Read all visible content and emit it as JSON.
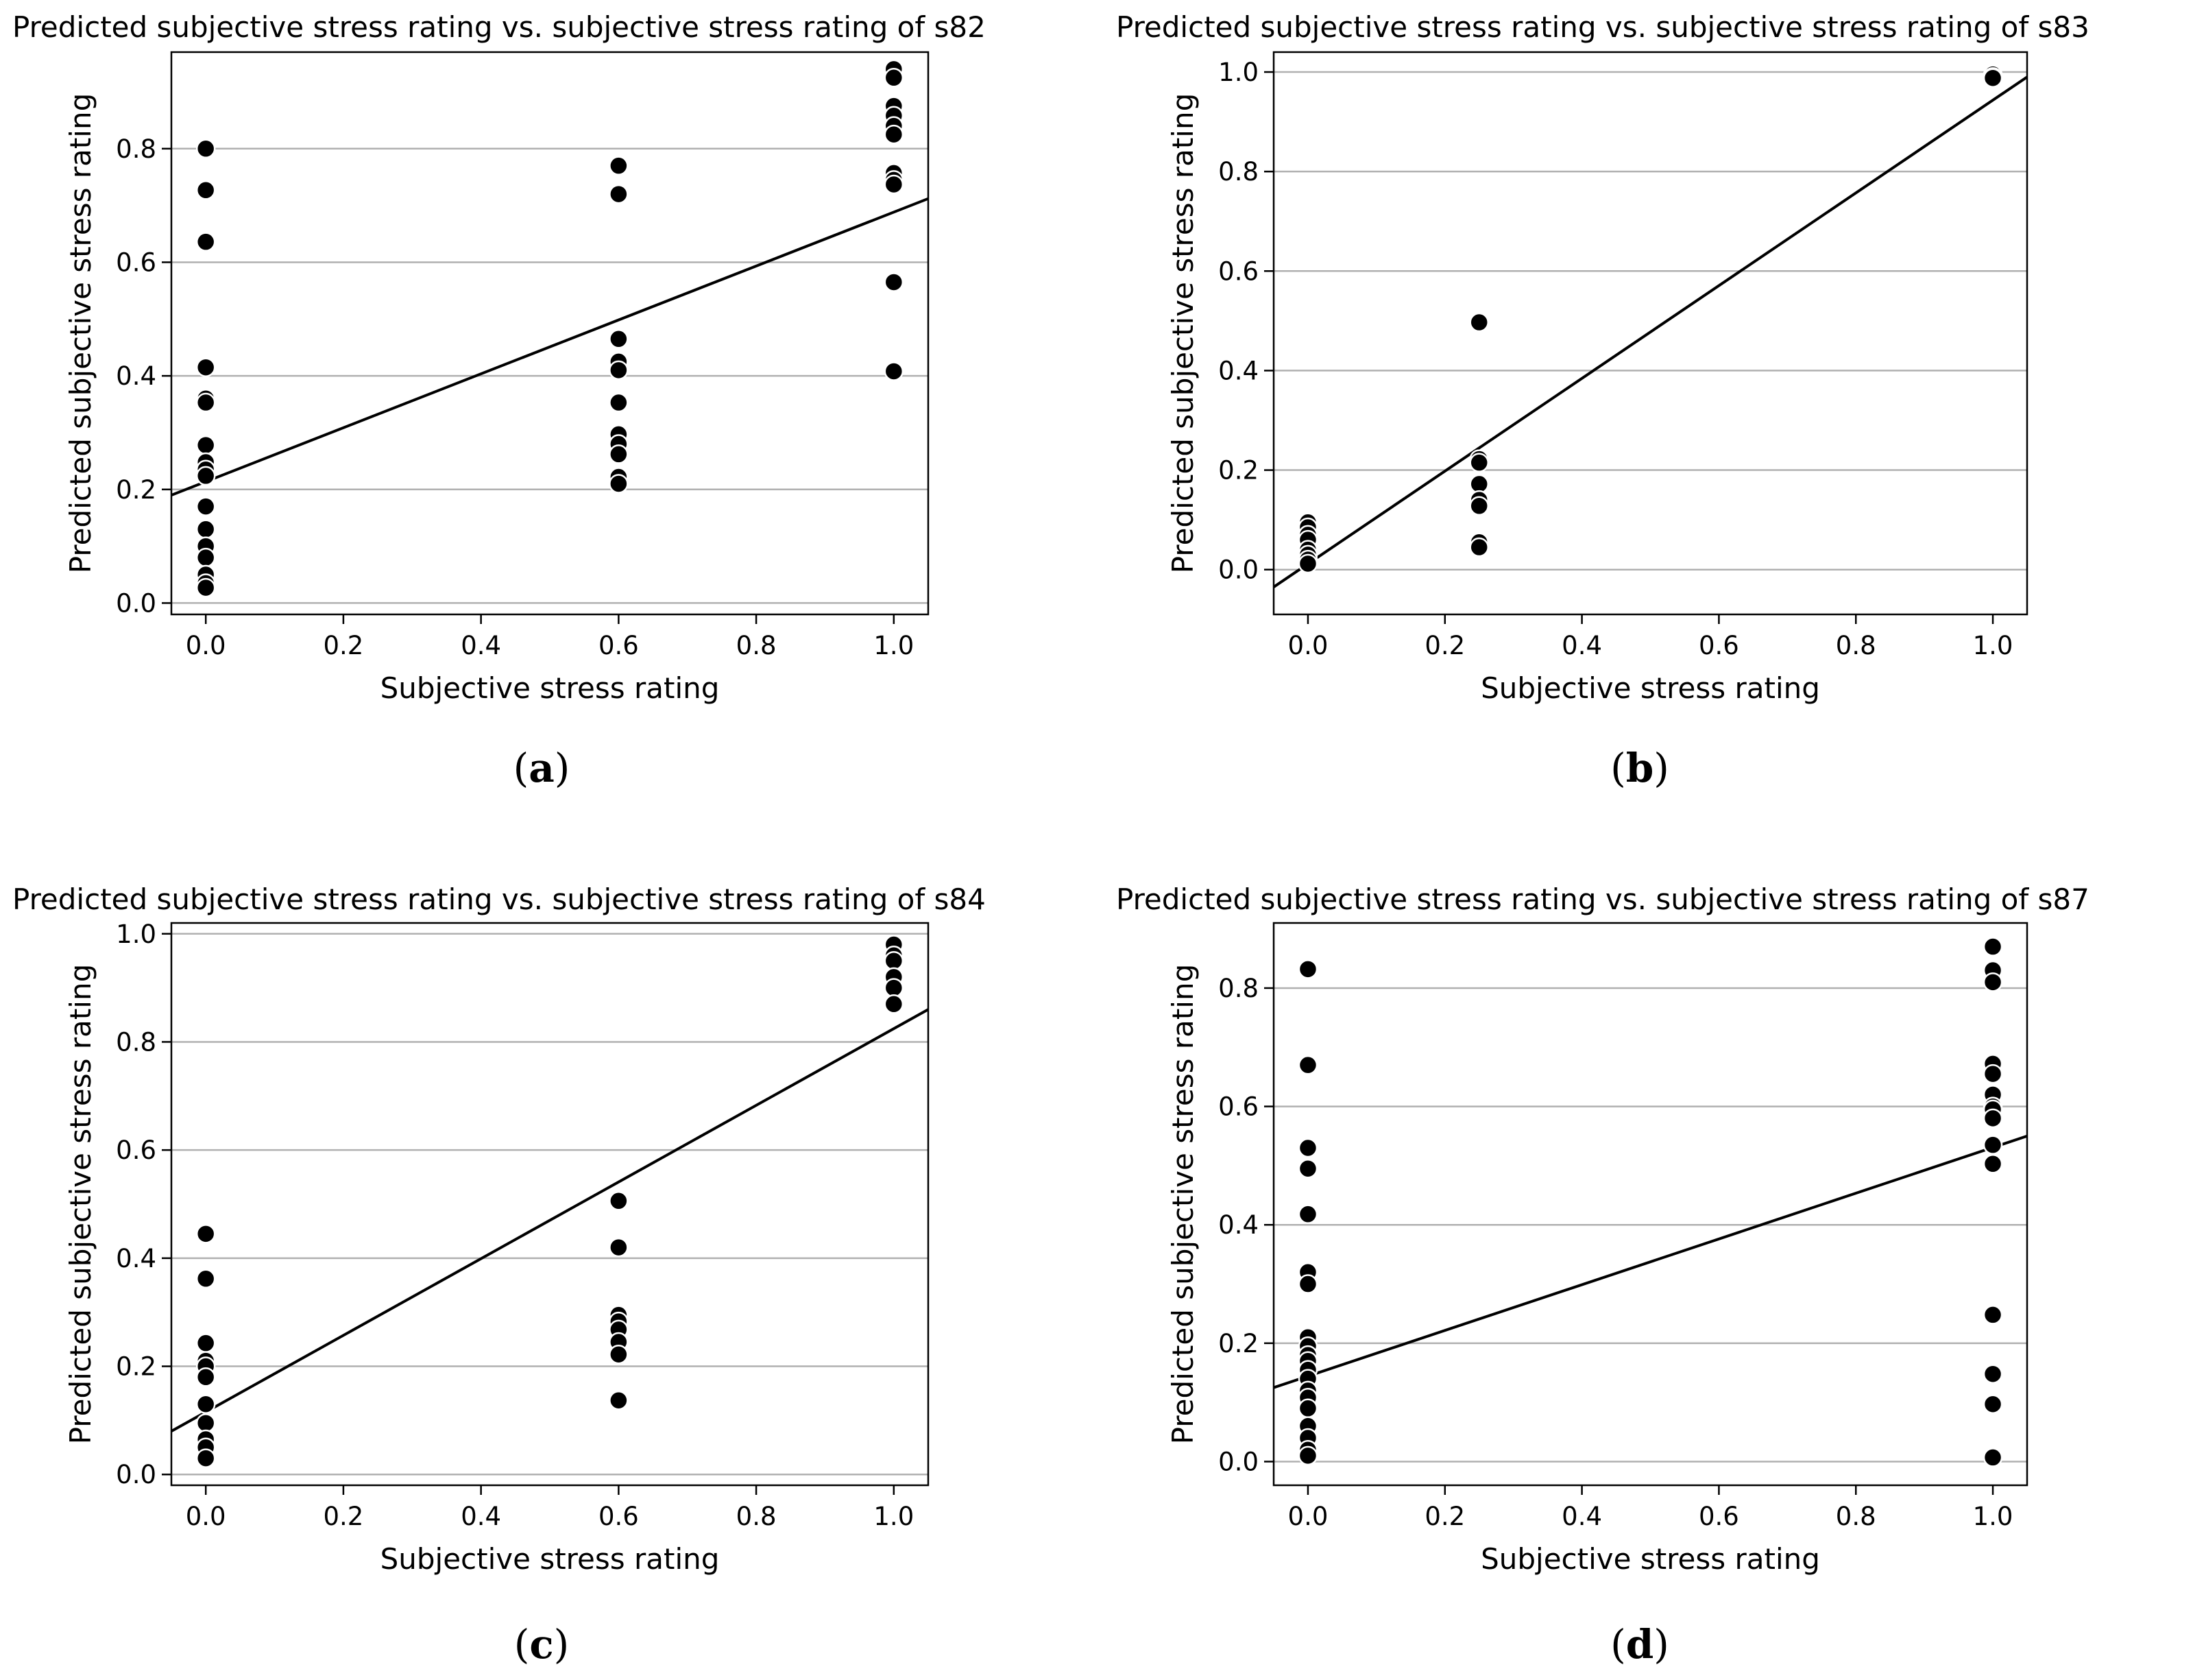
{
  "chart_data": [
    {
      "type": "scatter",
      "panel_label": "a",
      "title": "Predicted subjective stress rating vs. subjective stress rating of s82",
      "xlabel": "Subjective stress rating",
      "ylabel": "Predicted subjective stress rating",
      "xlim": [
        -0.05,
        1.05
      ],
      "ylim": [
        -0.02,
        0.97
      ],
      "xticks": [
        0.0,
        0.2,
        0.4,
        0.6,
        0.8,
        1.0
      ],
      "xtick_labels": [
        "0.0",
        "0.2",
        "0.4",
        "0.6",
        "0.8",
        "1.0"
      ],
      "yticks": [
        0.0,
        0.2,
        0.4,
        0.6,
        0.8
      ],
      "ytick_labels": [
        "0.0",
        "0.2",
        "0.4",
        "0.6",
        "0.8"
      ],
      "grid": "y",
      "points": [
        [
          0,
          0.8
        ],
        [
          0,
          0.727
        ],
        [
          0,
          0.636
        ],
        [
          0,
          0.415
        ],
        [
          0,
          0.36
        ],
        [
          0,
          0.353
        ],
        [
          0,
          0.278
        ],
        [
          0,
          0.248
        ],
        [
          0,
          0.235
        ],
        [
          0,
          0.224
        ],
        [
          0,
          0.17
        ],
        [
          0,
          0.13
        ],
        [
          0,
          0.1
        ],
        [
          0,
          0.08
        ],
        [
          0,
          0.05
        ],
        [
          0,
          0.035
        ],
        [
          0,
          0.027
        ],
        [
          0.6,
          0.77
        ],
        [
          0.6,
          0.72
        ],
        [
          0.6,
          0.465
        ],
        [
          0.6,
          0.425
        ],
        [
          0.6,
          0.41
        ],
        [
          0.6,
          0.353
        ],
        [
          0.6,
          0.297
        ],
        [
          0.6,
          0.28
        ],
        [
          0.6,
          0.262
        ],
        [
          0.6,
          0.222
        ],
        [
          0.6,
          0.21
        ],
        [
          1,
          0.94
        ],
        [
          1,
          0.925
        ],
        [
          1,
          0.875
        ],
        [
          1,
          0.858
        ],
        [
          1,
          0.84
        ],
        [
          1,
          0.825
        ],
        [
          1,
          0.757
        ],
        [
          1,
          0.745
        ],
        [
          1,
          0.737
        ],
        [
          1,
          0.565
        ],
        [
          1,
          0.408
        ]
      ],
      "fit_line": {
        "x": [
          -0.05,
          1.05
        ],
        "y": [
          0.19,
          0.712
        ]
      }
    },
    {
      "type": "scatter",
      "panel_label": "b",
      "title": "Predicted subjective stress rating vs. subjective stress rating of s83",
      "xlabel": "Subjective stress rating",
      "ylabel": "Predicted subjective stress rating",
      "xlim": [
        -0.05,
        1.05
      ],
      "ylim": [
        -0.09,
        1.04
      ],
      "xticks": [
        0.0,
        0.2,
        0.4,
        0.6,
        0.8,
        1.0
      ],
      "xtick_labels": [
        "0.0",
        "0.2",
        "0.4",
        "0.6",
        "0.8",
        "1.0"
      ],
      "yticks": [
        0.0,
        0.2,
        0.4,
        0.6,
        0.8,
        1.0
      ],
      "ytick_labels": [
        "0.0",
        "0.2",
        "0.4",
        "0.6",
        "0.8",
        "1.0"
      ],
      "grid": "y",
      "points": [
        [
          0,
          0.095
        ],
        [
          0,
          0.085
        ],
        [
          0,
          0.07
        ],
        [
          0,
          0.06
        ],
        [
          0,
          0.04
        ],
        [
          0,
          0.03
        ],
        [
          0,
          0.02
        ],
        [
          0,
          0.012
        ],
        [
          0.25,
          0.497
        ],
        [
          0.25,
          0.222
        ],
        [
          0.25,
          0.215
        ],
        [
          0.25,
          0.172
        ],
        [
          0.25,
          0.14
        ],
        [
          0.25,
          0.128
        ],
        [
          0.25,
          0.055
        ],
        [
          0.25,
          0.045
        ],
        [
          1,
          0.995
        ],
        [
          1,
          0.99
        ],
        [
          1,
          0.988
        ]
      ],
      "fit_line": {
        "x": [
          -0.05,
          1.05
        ],
        "y": [
          -0.035,
          0.99
        ]
      }
    },
    {
      "type": "scatter",
      "panel_label": "c",
      "title": "Predicted subjective stress rating vs. subjective stress rating of s84",
      "xlabel": "Subjective stress rating",
      "ylabel": "Predicted subjective stress rating",
      "xlim": [
        -0.05,
        1.05
      ],
      "ylim": [
        -0.02,
        1.02
      ],
      "xticks": [
        0.0,
        0.2,
        0.4,
        0.6,
        0.8,
        1.0
      ],
      "xtick_labels": [
        "0.0",
        "0.2",
        "0.4",
        "0.6",
        "0.8",
        "1.0"
      ],
      "yticks": [
        0.0,
        0.2,
        0.4,
        0.6,
        0.8,
        1.0
      ],
      "ytick_labels": [
        "0.0",
        "0.2",
        "0.4",
        "0.6",
        "0.8",
        "1.0"
      ],
      "grid": "y",
      "points": [
        [
          0,
          0.445
        ],
        [
          0,
          0.362
        ],
        [
          0,
          0.243
        ],
        [
          0,
          0.21
        ],
        [
          0,
          0.2
        ],
        [
          0,
          0.18
        ],
        [
          0,
          0.13
        ],
        [
          0,
          0.095
        ],
        [
          0,
          0.065
        ],
        [
          0,
          0.05
        ],
        [
          0,
          0.03
        ],
        [
          0.6,
          0.506
        ],
        [
          0.6,
          0.42
        ],
        [
          0.6,
          0.295
        ],
        [
          0.6,
          0.283
        ],
        [
          0.6,
          0.268
        ],
        [
          0.6,
          0.245
        ],
        [
          0.6,
          0.222
        ],
        [
          0.6,
          0.137
        ],
        [
          1,
          0.98
        ],
        [
          1,
          0.96
        ],
        [
          1,
          0.95
        ],
        [
          1,
          0.92
        ],
        [
          1,
          0.9
        ],
        [
          1,
          0.87
        ]
      ],
      "fit_line": {
        "x": [
          -0.05,
          1.05
        ],
        "y": [
          0.08,
          0.86
        ]
      }
    },
    {
      "type": "scatter",
      "panel_label": "d",
      "title": "Predicted subjective stress rating vs. subjective stress rating of s87",
      "xlabel": "Subjective stress rating",
      "ylabel": "Predicted subjective stress rating",
      "xlim": [
        -0.05,
        1.05
      ],
      "ylim": [
        -0.04,
        0.91
      ],
      "xticks": [
        0.0,
        0.2,
        0.4,
        0.6,
        0.8,
        1.0
      ],
      "xtick_labels": [
        "0.0",
        "0.2",
        "0.4",
        "0.6",
        "0.8",
        "1.0"
      ],
      "yticks": [
        0.0,
        0.2,
        0.4,
        0.6,
        0.8
      ],
      "ytick_labels": [
        "0.0",
        "0.2",
        "0.4",
        "0.6",
        "0.8"
      ],
      "grid": "y",
      "points": [
        [
          0,
          0.832
        ],
        [
          0,
          0.67
        ],
        [
          0,
          0.53
        ],
        [
          0,
          0.495
        ],
        [
          0,
          0.418
        ],
        [
          0,
          0.32
        ],
        [
          0,
          0.3
        ],
        [
          0,
          0.21
        ],
        [
          0,
          0.195
        ],
        [
          0,
          0.18
        ],
        [
          0,
          0.17
        ],
        [
          0,
          0.155
        ],
        [
          0,
          0.14
        ],
        [
          0,
          0.12
        ],
        [
          0,
          0.108
        ],
        [
          0,
          0.09
        ],
        [
          0,
          0.06
        ],
        [
          0,
          0.04
        ],
        [
          0,
          0.02
        ],
        [
          0,
          0.01
        ],
        [
          1,
          0.87
        ],
        [
          1,
          0.83
        ],
        [
          1,
          0.81
        ],
        [
          1,
          0.672
        ],
        [
          1,
          0.655
        ],
        [
          1,
          0.62
        ],
        [
          1,
          0.6
        ],
        [
          1,
          0.595
        ],
        [
          1,
          0.58
        ],
        [
          1,
          0.535
        ],
        [
          1,
          0.503
        ],
        [
          1,
          0.248
        ],
        [
          1,
          0.148
        ],
        [
          1,
          0.097
        ],
        [
          1,
          0.007
        ]
      ],
      "fit_line": {
        "x": [
          -0.05,
          1.05
        ],
        "y": [
          0.125,
          0.55
        ]
      }
    }
  ]
}
